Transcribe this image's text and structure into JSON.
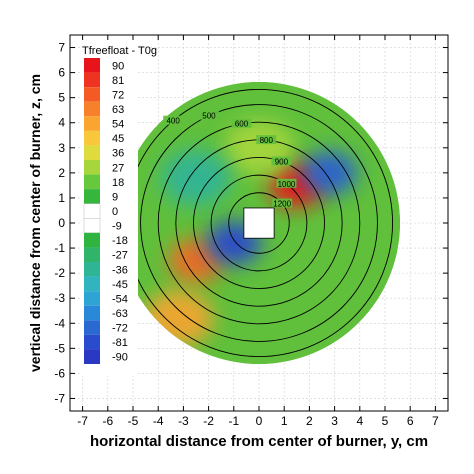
{
  "chart_data": {
    "type": "heatmap",
    "title": "",
    "xlabel": "horizontal distance from center of burner, y, cm",
    "ylabel": "vertical distance from center of burner, z, cm",
    "xlim": [
      -7.5,
      7.5
    ],
    "ylim": [
      -7.5,
      7.5
    ],
    "x_ticks": [
      -7,
      -6,
      -5,
      -4,
      -3,
      -2,
      -1,
      0,
      1,
      2,
      3,
      4,
      5,
      6,
      7
    ],
    "y_ticks": [
      -7,
      -6,
      -5,
      -4,
      -3,
      -2,
      -1,
      0,
      1,
      2,
      3,
      4,
      5,
      6,
      7
    ],
    "grid": true,
    "legend": {
      "title": "Tfreefloat - T0g",
      "placement": "top-left",
      "levels": [
        90,
        81,
        72,
        63,
        54,
        45,
        36,
        27,
        18,
        9,
        0,
        -9,
        -18,
        -27,
        -36,
        -45,
        -54,
        -63,
        -72,
        -81,
        -90
      ],
      "colors": [
        "#e8141c",
        "#ee3420",
        "#f45a24",
        "#f7802a",
        "#f9a530",
        "#f8c83a",
        "#dedc3c",
        "#a6d63c",
        "#66c83c",
        "#36b63c",
        "#ffffff",
        "#ffffff",
        "#30b440",
        "#30b46a",
        "#30b496",
        "#30b4be",
        "#2ea4d4",
        "#2a88d8",
        "#2a68d2",
        "#2a4ccc",
        "#2a38c4"
      ]
    },
    "field": {
      "base_color": "#60c03c",
      "hot_lobes": [
        {
          "y": -2.5,
          "z": -1.5,
          "value": 70,
          "color": "#f06a26"
        },
        {
          "y": -3.2,
          "z": -3.8,
          "value": 40,
          "color": "#f2a532"
        },
        {
          "y": 1.5,
          "z": 1.5,
          "value": 90,
          "color": "#e8141c"
        },
        {
          "y": 0.0,
          "z": 3.0,
          "value": 25,
          "color": "#a6d63c"
        }
      ],
      "cold_lobes": [
        {
          "y": -1.0,
          "z": -0.8,
          "value": -85,
          "color": "#2a48cc"
        },
        {
          "y": 2.8,
          "z": 2.0,
          "value": -75,
          "color": "#2a60d0"
        },
        {
          "y": -2.5,
          "z": 1.8,
          "value": -30,
          "color": "#30b496"
        }
      ]
    },
    "contours": [
      {
        "r": 1.2,
        "label": "1200"
      },
      {
        "r": 1.9,
        "label": "1000"
      },
      {
        "r": 2.6,
        "label": "900"
      },
      {
        "r": 3.3,
        "label": "800"
      },
      {
        "r": 4.0,
        "label": "600"
      },
      {
        "r": 4.7,
        "label": "500"
      },
      {
        "r": 5.3,
        "label": "400"
      }
    ]
  }
}
